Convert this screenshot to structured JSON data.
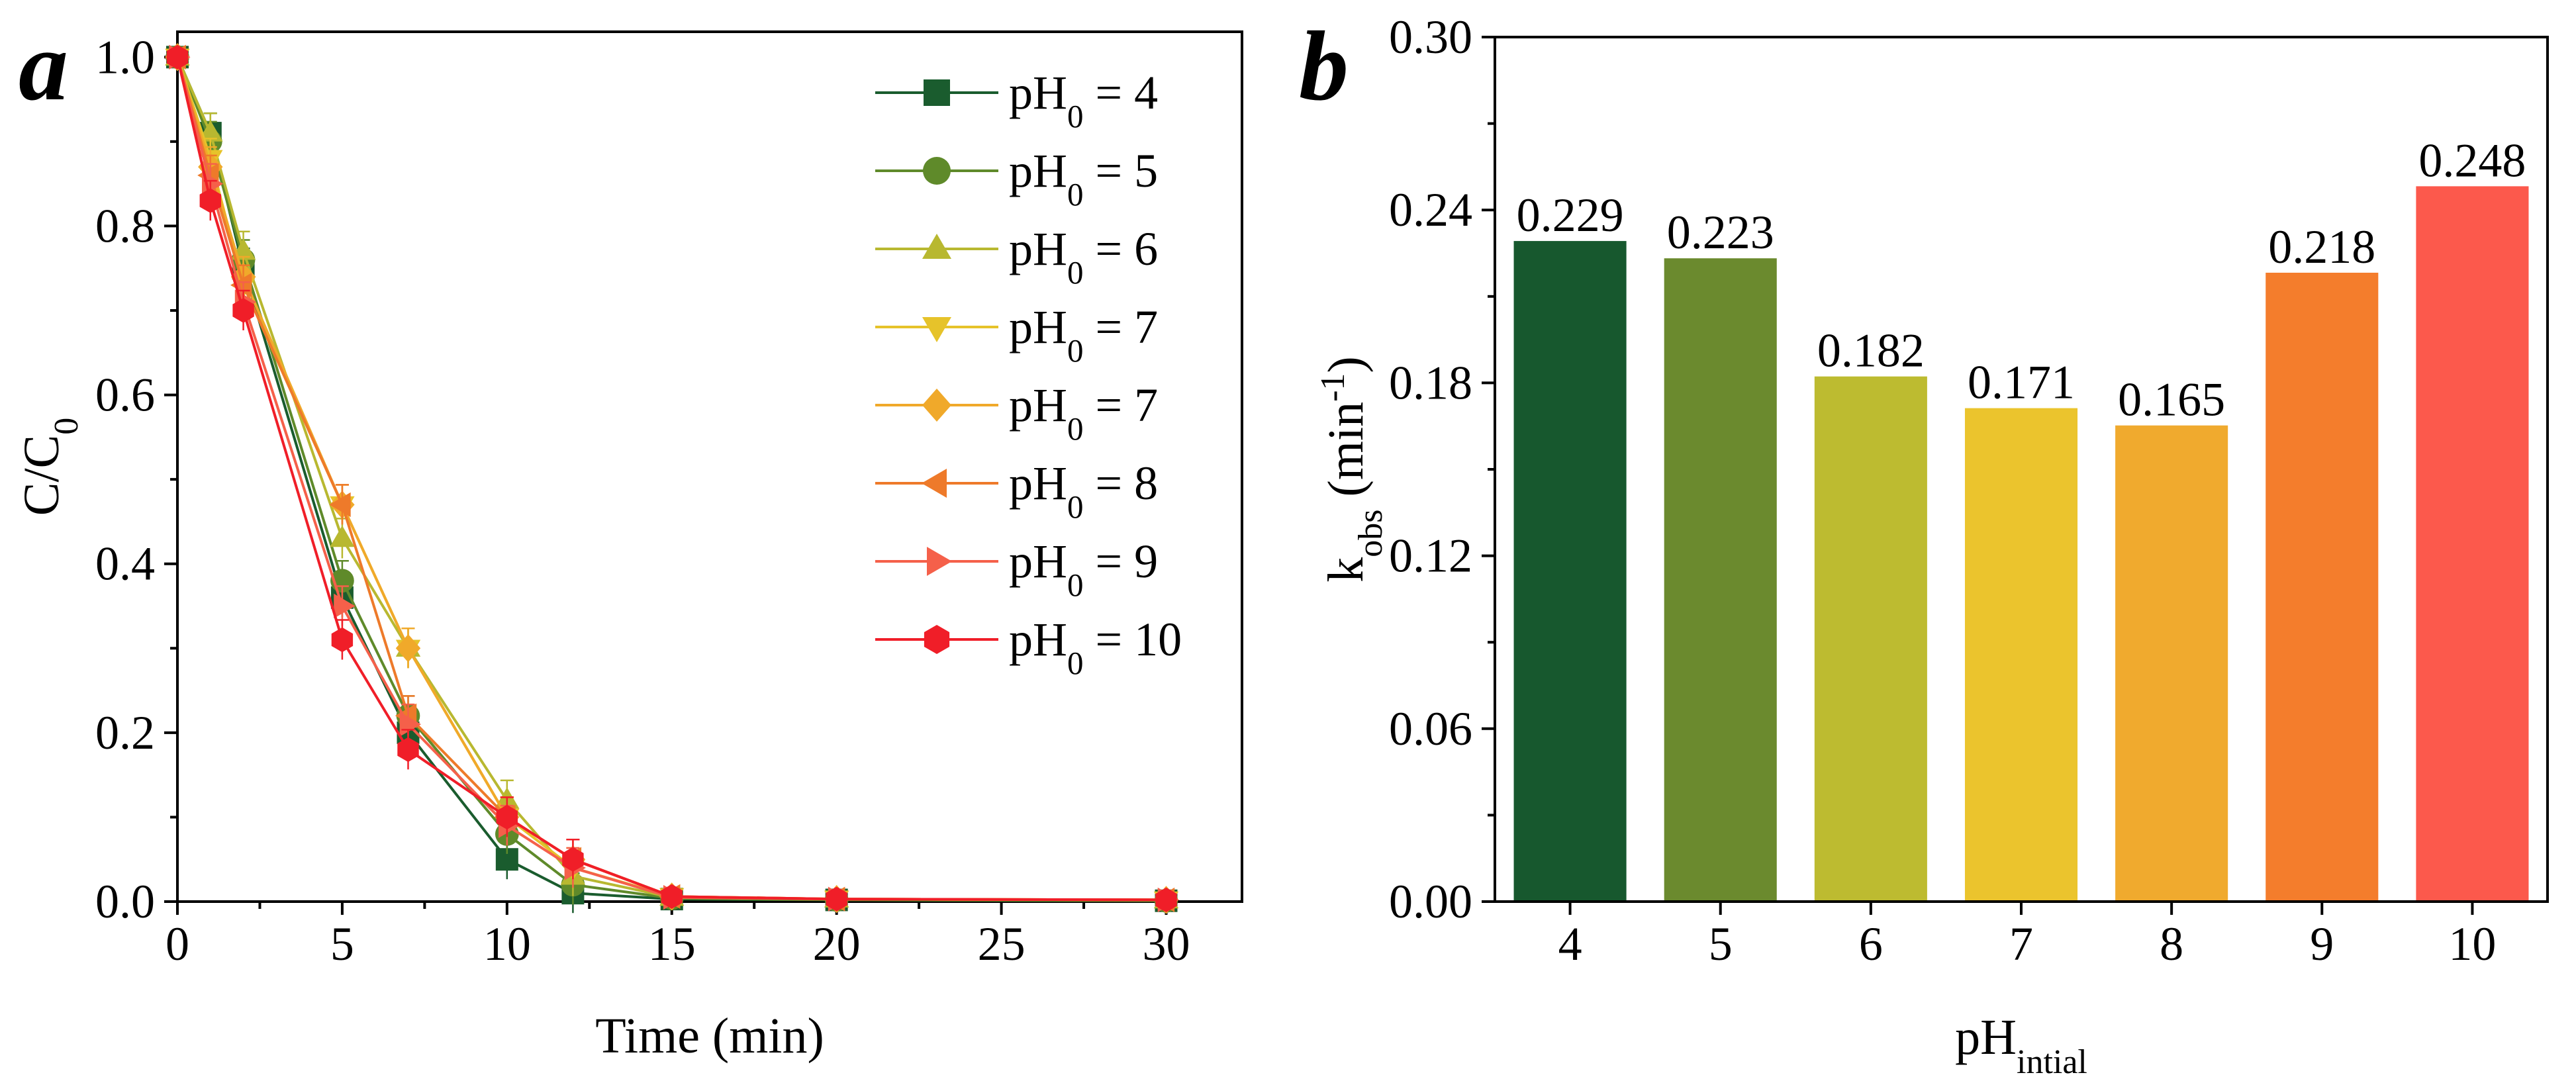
{
  "panels": {
    "a": {
      "label": "a"
    },
    "b": {
      "label": "b"
    }
  },
  "chart_data": [
    {
      "type": "line",
      "panel": "a",
      "xlabel": "Time (min)",
      "ylabel": {
        "base": "C/C",
        "sub": "0"
      },
      "xlim": [
        0,
        32.3
      ],
      "ylim": [
        0,
        1.03
      ],
      "xticks": [
        0,
        5,
        10,
        15,
        20,
        25,
        30
      ],
      "yticks": [
        0.0,
        0.2,
        0.4,
        0.6,
        0.8,
        1.0
      ],
      "xtick_labels": [
        "0",
        "5",
        "10",
        "15",
        "20",
        "25",
        "30"
      ],
      "ytick_labels": [
        "0.0",
        "0.2",
        "0.4",
        "0.6",
        "0.8",
        "1.0"
      ],
      "grid": false,
      "legend_position": "top-right",
      "x": [
        0,
        1,
        2,
        5,
        7,
        10,
        12,
        15,
        20,
        30
      ],
      "series": [
        {
          "name": {
            "base": "pH",
            "sub": "0",
            "rest": " = 4"
          },
          "color": "#1a5c2e",
          "marker": "square",
          "values": [
            1.0,
            0.91,
            0.75,
            0.36,
            0.2,
            0.05,
            0.01,
            0.003,
            0.002,
            0.001
          ]
        },
        {
          "name": {
            "base": "pH",
            "sub": "0",
            "rest": " = 5"
          },
          "color": "#5f8a2a",
          "marker": "circle",
          "values": [
            1.0,
            0.9,
            0.76,
            0.38,
            0.22,
            0.08,
            0.02,
            0.004,
            0.002,
            0.001
          ]
        },
        {
          "name": {
            "base": "pH",
            "sub": "0",
            "rest": " = 6"
          },
          "color": "#b8b830",
          "marker": "triangle-up",
          "values": [
            1.0,
            0.91,
            0.77,
            0.43,
            0.3,
            0.12,
            0.03,
            0.005,
            0.003,
            0.002
          ]
        },
        {
          "name": {
            "base": "pH",
            "sub": "0",
            "rest": " = 7"
          },
          "color": "#e6c32a",
          "marker": "triangle-down",
          "values": [
            1.0,
            0.88,
            0.73,
            0.47,
            0.3,
            0.1,
            0.04,
            0.006,
            0.003,
            0.002
          ]
        },
        {
          "name": {
            "base": "pH",
            "sub": "0",
            "rest": " = 7"
          },
          "color": "#f0a92a",
          "marker": "diamond",
          "values": [
            1.0,
            0.87,
            0.74,
            0.47,
            0.3,
            0.1,
            0.05,
            0.006,
            0.003,
            0.002
          ]
        },
        {
          "name": {
            "base": "pH",
            "sub": "0",
            "rest": " = 8"
          },
          "color": "#ee7a2a",
          "marker": "triangle-left",
          "values": [
            1.0,
            0.86,
            0.73,
            0.47,
            0.22,
            0.1,
            0.05,
            0.006,
            0.003,
            0.002
          ]
        },
        {
          "name": {
            "base": "pH",
            "sub": "0",
            "rest": " = 9"
          },
          "color": "#f5604a",
          "marker": "triangle-right",
          "values": [
            1.0,
            0.85,
            0.71,
            0.35,
            0.21,
            0.09,
            0.04,
            0.005,
            0.003,
            0.002
          ]
        },
        {
          "name": {
            "base": "pH",
            "sub": "0",
            "rest": " = 10"
          },
          "color": "#f01e28",
          "marker": "hexagon",
          "values": [
            1.0,
            0.83,
            0.7,
            0.31,
            0.18,
            0.1,
            0.05,
            0.006,
            0.003,
            0.002
          ]
        }
      ]
    },
    {
      "type": "bar",
      "panel": "b",
      "xlabel": {
        "base": "pH",
        "sub": "intial"
      },
      "ylabel": {
        "base": "k",
        "sub": "obs",
        "rest": " (min",
        "sup": "-1",
        "end": ")"
      },
      "ylim": [
        0,
        0.3
      ],
      "yticks": [
        0.0,
        0.06,
        0.12,
        0.18,
        0.24,
        0.3
      ],
      "ytick_labels": [
        "0.00",
        "0.06",
        "0.12",
        "0.18",
        "0.24",
        "0.30"
      ],
      "grid": false,
      "categories": [
        "4",
        "5",
        "6",
        "7",
        "8",
        "9",
        "10"
      ],
      "values": [
        0.229,
        0.223,
        0.182,
        0.171,
        0.165,
        0.218,
        0.248
      ],
      "value_labels": [
        "0.229",
        "0.223",
        "0.182",
        "0.171",
        "0.165",
        "0.218",
        "0.248"
      ],
      "colors": [
        "#17582e",
        "#6b8a2e",
        "#bdbb30",
        "#ebc42d",
        "#f0aa2e",
        "#f47d2c",
        "#fc594c"
      ]
    }
  ]
}
